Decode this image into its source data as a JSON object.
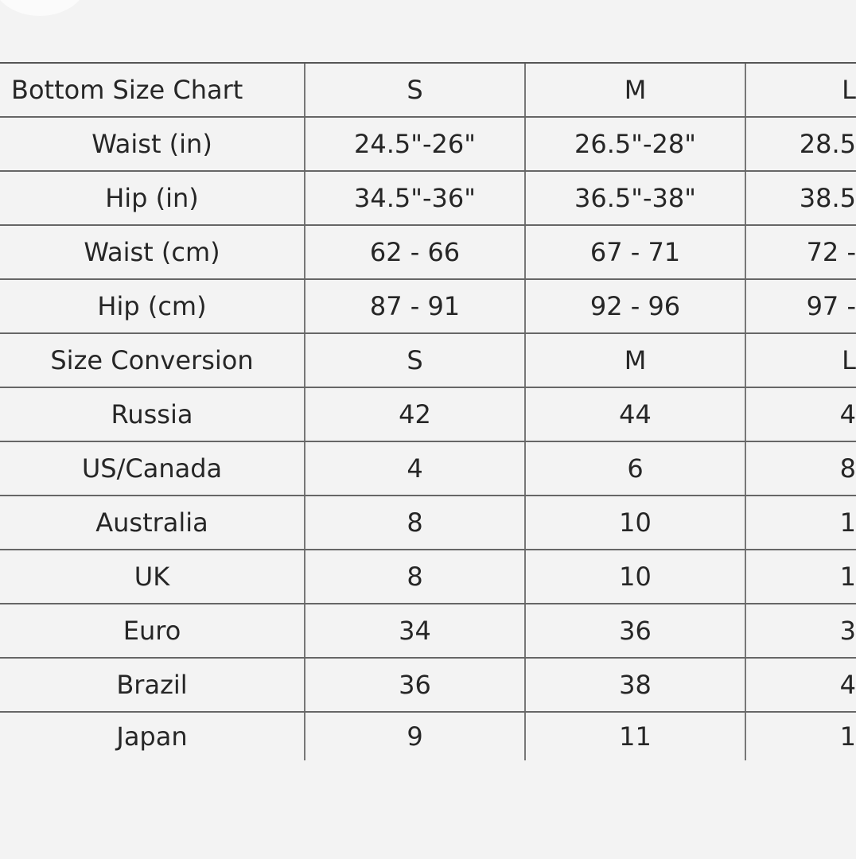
{
  "table": {
    "rows": [
      {
        "label": "Bottom Size Chart",
        "s": "S",
        "m": "M",
        "l": "L"
      },
      {
        "label": "Waist (in)",
        "s": "24.5\"-26\"",
        "m": "26.5\"-28\"",
        "l": "28.5"
      },
      {
        "label": "Hip (in)",
        "s": "34.5\"-36\"",
        "m": "36.5\"-38\"",
        "l": "38.5"
      },
      {
        "label": "Waist (cm)",
        "s": "62 - 66",
        "m": "67 - 71",
        "l": "72 -"
      },
      {
        "label": "Hip (cm)",
        "s": "87 - 91",
        "m": "92 - 96",
        "l": "97 -"
      },
      {
        "label": "Size Conversion",
        "s": "S",
        "m": "M",
        "l": "L"
      },
      {
        "label": "Russia",
        "s": "42",
        "m": "44",
        "l": "4"
      },
      {
        "label": "US/Canada",
        "s": "4",
        "m": "6",
        "l": "8"
      },
      {
        "label": "Australia",
        "s": "8",
        "m": "10",
        "l": "1"
      },
      {
        "label": "UK",
        "s": "8",
        "m": "10",
        "l": "1"
      },
      {
        "label": "Euro",
        "s": "34",
        "m": "36",
        "l": "3"
      },
      {
        "label": "Brazil",
        "s": "36",
        "m": "38",
        "l": "4"
      },
      {
        "label": "Japan",
        "s": "9",
        "m": "11",
        "l": "1"
      }
    ]
  }
}
